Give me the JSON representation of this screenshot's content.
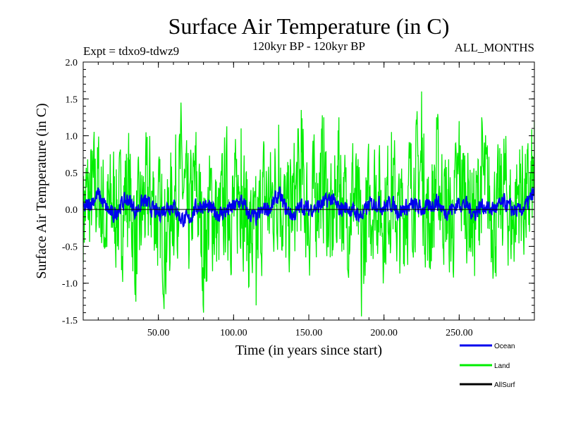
{
  "chart_data": {
    "type": "line",
    "title": "Surface Air Temperature (in C)",
    "subtitle": "120kyr BP - 120kyr BP",
    "left_note": "Expt = tdxo9-tdwz9",
    "right_note": "ALL_MONTHS",
    "xlabel": "Time (in years since start)",
    "ylabel": "Surface Air Temperature (in C)",
    "xlim": [
      0,
      300
    ],
    "ylim": [
      -1.5,
      2.0
    ],
    "x_ticks": [
      50,
      100,
      150,
      200,
      250
    ],
    "x_tick_labels": [
      "50.00",
      "100.00",
      "150.00",
      "200.00",
      "250.00"
    ],
    "y_ticks": [
      -1.5,
      -1.0,
      -0.5,
      0.0,
      0.5,
      1.0,
      1.5,
      2.0
    ],
    "y_tick_labels": [
      "-1.5",
      "-1.0",
      "-0.5",
      "0.0",
      "0.5",
      "1.0",
      "1.5",
      "2.0"
    ],
    "zero_line": true,
    "grid": false,
    "legend_position": "bottom-right",
    "colors": {
      "Ocean": "#0000ee",
      "Land": "#00ee00",
      "AllSurf": "#000000"
    },
    "series": [
      {
        "name": "Land",
        "x": [
          0,
          5,
          10,
          15,
          20,
          25,
          30,
          35,
          40,
          45,
          50,
          55,
          60,
          65,
          70,
          75,
          80,
          85,
          90,
          95,
          100,
          105,
          110,
          115,
          120,
          125,
          130,
          135,
          140,
          145,
          150,
          155,
          160,
          165,
          170,
          175,
          180,
          185,
          190,
          195,
          200,
          205,
          210,
          215,
          220,
          225,
          230,
          235,
          240,
          245,
          250,
          255,
          260,
          265,
          270,
          275,
          280,
          285,
          290,
          295,
          300
        ],
        "values": [
          0.1,
          0.42,
          0.88,
          -0.55,
          0.3,
          -0.2,
          0.95,
          -1.25,
          0.15,
          0.6,
          -0.35,
          -1.15,
          0.45,
          1.45,
          -0.6,
          1.05,
          -1.4,
          0.25,
          -0.8,
          0.7,
          -0.15,
          1.1,
          -0.9,
          -1.3,
          0.5,
          0.2,
          1.15,
          -0.7,
          0.35,
          1.35,
          -0.45,
          0.65,
          1.25,
          -0.95,
          1.25,
          -0.3,
          0.8,
          -1.45,
          0.1,
          0.75,
          -0.35,
          1.05,
          -0.65,
          0.4,
          1.0,
          1.6,
          -0.9,
          1.25,
          0.3,
          -0.75,
          1.2,
          0.45,
          -0.55,
          1.25,
          0.2,
          -0.4,
          0.95,
          -0.6,
          0.85,
          0.1,
          1.2
        ],
        "amplitude": 0.9,
        "extremes": {
          "max": 1.62,
          "min": -1.43
        }
      },
      {
        "name": "Ocean",
        "x": [
          0,
          5,
          10,
          15,
          20,
          25,
          30,
          35,
          40,
          45,
          50,
          55,
          60,
          65,
          70,
          75,
          80,
          85,
          90,
          95,
          100,
          105,
          110,
          115,
          120,
          125,
          130,
          135,
          140,
          145,
          150,
          155,
          160,
          165,
          170,
          175,
          180,
          185,
          190,
          195,
          200,
          205,
          210,
          215,
          220,
          225,
          230,
          235,
          240,
          245,
          250,
          255,
          260,
          265,
          270,
          275,
          280,
          285,
          290,
          295,
          300
        ],
        "values": [
          0.0,
          0.15,
          0.35,
          0.05,
          -0.15,
          0.1,
          0.25,
          -0.05,
          0.2,
          0.05,
          -0.1,
          0.05,
          0.1,
          -0.2,
          -0.25,
          0.05,
          0.1,
          0.0,
          -0.1,
          -0.05,
          0.05,
          0.2,
          -0.1,
          -0.2,
          0.0,
          0.05,
          0.35,
          0.0,
          -0.15,
          0.1,
          0.0,
          0.05,
          0.15,
          0.25,
          0.0,
          0.05,
          -0.05,
          -0.15,
          0.1,
          0.15,
          0.05,
          0.15,
          -0.05,
          0.05,
          0.1,
          0.0,
          0.05,
          0.2,
          -0.05,
          0.0,
          0.15,
          0.1,
          -0.1,
          0.1,
          0.0,
          0.05,
          0.15,
          0.0,
          -0.05,
          0.1,
          0.4
        ],
        "amplitude": 0.12
      },
      {
        "name": "AllSurf",
        "x": [],
        "values": []
      }
    ]
  }
}
